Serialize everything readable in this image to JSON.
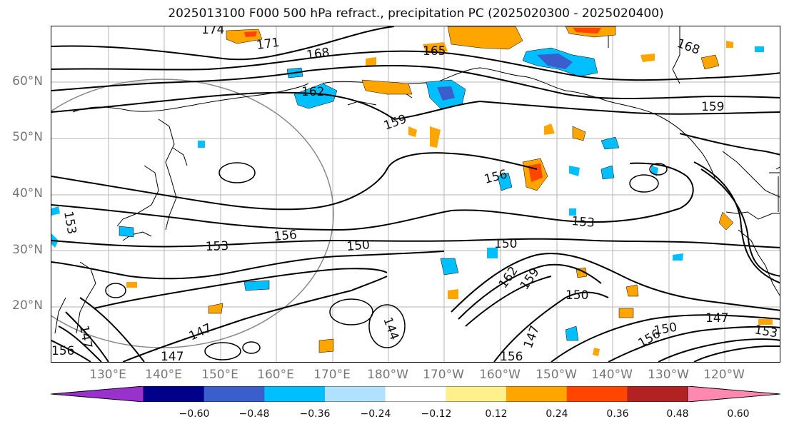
{
  "title": "2025013100 F000 500 hPa refract., precipitation PC (2025020300 - 2025020400)",
  "lat_labels": [
    "60°N",
    "50°N",
    "40°N",
    "30°N",
    "20°N"
  ],
  "lon_labels": [
    "130°E",
    "140°E",
    "150°E",
    "160°E",
    "170°E",
    "180°W",
    "170°W",
    "160°W",
    "150°W",
    "140°W",
    "130°W",
    "120°W"
  ],
  "contour_labels": [
    "174",
    "171",
    "168",
    "165",
    "162",
    "159",
    "156",
    "153",
    "150",
    "147",
    "144",
    "168",
    "159",
    "156",
    "153",
    "153",
    "150",
    "150",
    "147",
    "147",
    "153",
    "150",
    "156",
    "159",
    "162",
    "147",
    "156",
    "147",
    "156"
  ],
  "colorbar": {
    "ticks": [
      "−0.60",
      "−0.48",
      "−0.36",
      "−0.24",
      "−0.12",
      "0.12",
      "0.24",
      "0.36",
      "0.48",
      "0.60"
    ],
    "colors": [
      "#9932cc",
      "#00008b",
      "#3a5fcd",
      "#00bfff",
      "#b0e2ff",
      "#ffffff",
      "#fff08c",
      "#ffa500",
      "#ff4500",
      "#b22222",
      "#ff88b0"
    ]
  },
  "colors": {
    "negative_strong": "#3a5fcd",
    "negative": "#00bfff",
    "negative_light": "#b0e2ff",
    "positive_light": "#fff08c",
    "positive": "#ffa500",
    "positive_strong": "#ff4500"
  }
}
